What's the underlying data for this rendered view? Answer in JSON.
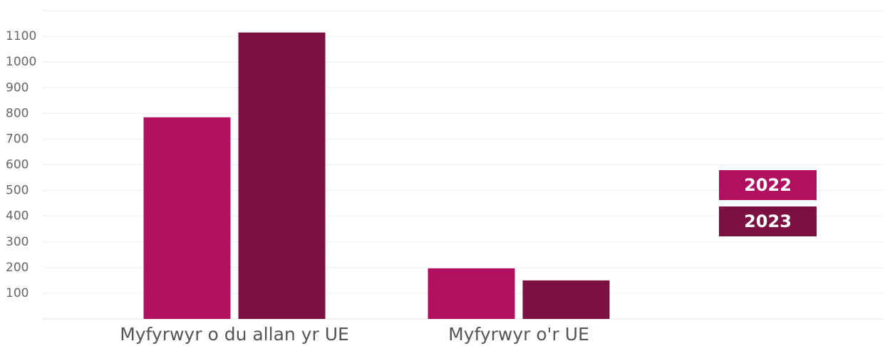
{
  "chart_data": {
    "type": "bar",
    "categories": [
      "Myfyrwyr o du allan yr UE",
      "Myfyrwyr o'r UE"
    ],
    "series": [
      {
        "name": "2022",
        "color": "#b0105f",
        "values": [
          785,
          197
        ]
      },
      {
        "name": "2023",
        "color": "#7b1043",
        "values": [
          1115,
          150
        ]
      }
    ],
    "ylim": [
      0,
      1200
    ],
    "yticks": [
      100,
      200,
      300,
      400,
      500,
      600,
      700,
      800,
      900,
      1000,
      1100
    ],
    "grid": true,
    "legend": "right"
  }
}
